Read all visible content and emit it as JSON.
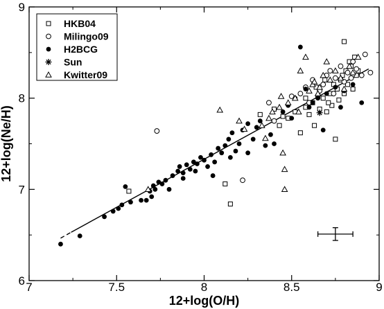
{
  "chart_data": {
    "type": "scatter",
    "xlabel": "12+log(O/H)",
    "ylabel": "12+log(Ne/H)",
    "xlim": [
      7,
      9
    ],
    "ylim": [
      6,
      9
    ],
    "x_ticks": [
      "7",
      "7.5",
      "8",
      "8.5",
      "9"
    ],
    "y_ticks": [
      "6",
      "7",
      "8",
      "9"
    ],
    "grid": false,
    "legend_position": "top-left",
    "series": [
      {
        "name": "HKB04",
        "marker": "square-open",
        "points": [
          [
            7.57,
            6.98
          ],
          [
            8.12,
            7.06
          ],
          [
            8.15,
            6.84
          ],
          [
            8.32,
            7.82
          ],
          [
            8.4,
            7.88
          ],
          [
            8.43,
            7.7
          ],
          [
            8.45,
            7.8
          ],
          [
            8.48,
            7.78
          ],
          [
            8.52,
            7.85
          ],
          [
            8.55,
            7.62
          ],
          [
            8.58,
            7.9
          ],
          [
            8.6,
            7.82
          ],
          [
            8.62,
            7.95
          ],
          [
            8.63,
            7.7
          ],
          [
            8.65,
            8.02
          ],
          [
            8.66,
            7.88
          ],
          [
            8.68,
            8.0
          ],
          [
            8.7,
            7.85
          ],
          [
            8.72,
            8.05
          ],
          [
            8.73,
            7.92
          ],
          [
            8.74,
            8.15
          ],
          [
            8.76,
            8.1
          ],
          [
            8.77,
            7.98
          ],
          [
            8.78,
            8.2
          ],
          [
            8.79,
            8.25
          ],
          [
            8.8,
            8.05
          ],
          [
            8.81,
            8.3
          ],
          [
            8.82,
            8.15
          ],
          [
            8.83,
            8.4
          ],
          [
            8.84,
            8.35
          ],
          [
            8.85,
            8.1
          ],
          [
            8.86,
            8.45
          ],
          [
            8.87,
            8.25
          ],
          [
            8.88,
            8.3
          ],
          [
            8.8,
            8.62
          ],
          [
            8.75,
            7.55
          ],
          [
            8.58,
            8.0
          ],
          [
            8.64,
            8.12
          ],
          [
            8.69,
            8.2
          ],
          [
            8.71,
            7.95
          ]
        ]
      },
      {
        "name": "Milingo09",
        "marker": "circle-open",
        "points": [
          [
            7.73,
            7.64
          ],
          [
            8.22,
            7.1
          ],
          [
            8.37,
            7.95
          ],
          [
            8.4,
            7.75
          ],
          [
            8.55,
            8.05
          ],
          [
            8.58,
            8.12
          ],
          [
            8.62,
            8.2
          ],
          [
            8.66,
            8.08
          ],
          [
            8.7,
            8.25
          ],
          [
            8.72,
            8.3
          ],
          [
            8.75,
            8.22
          ],
          [
            8.78,
            8.35
          ],
          [
            8.8,
            8.18
          ],
          [
            8.82,
            8.28
          ],
          [
            8.85,
            8.4
          ],
          [
            8.87,
            8.32
          ],
          [
            8.9,
            8.25
          ],
          [
            8.92,
            8.48
          ],
          [
            8.95,
            8.28
          ],
          [
            8.6,
            7.95
          ],
          [
            8.68,
            8.15
          ],
          [
            8.74,
            8.05
          ],
          [
            8.84,
            8.22
          ],
          [
            8.5,
            8.02
          ]
        ]
      },
      {
        "name": "H2BCG",
        "marker": "circle-filled",
        "points": [
          [
            7.18,
            6.4
          ],
          [
            7.29,
            6.49
          ],
          [
            7.43,
            6.7
          ],
          [
            7.48,
            6.76
          ],
          [
            7.51,
            6.79
          ],
          [
            7.53,
            6.83
          ],
          [
            7.55,
            7.03
          ],
          [
            7.58,
            6.86
          ],
          [
            7.64,
            6.88
          ],
          [
            7.67,
            6.88
          ],
          [
            7.69,
            6.98
          ],
          [
            7.7,
            6.92
          ],
          [
            7.71,
            7.04
          ],
          [
            7.72,
            7.0
          ],
          [
            7.74,
            7.08
          ],
          [
            7.76,
            7.06
          ],
          [
            7.78,
            7.1
          ],
          [
            7.8,
            7.0
          ],
          [
            7.82,
            7.15
          ],
          [
            7.85,
            7.2
          ],
          [
            7.86,
            7.25
          ],
          [
            7.88,
            7.18
          ],
          [
            7.9,
            7.27
          ],
          [
            7.92,
            7.22
          ],
          [
            7.94,
            7.3
          ],
          [
            7.96,
            7.28
          ],
          [
            7.98,
            7.35
          ],
          [
            8.0,
            7.32
          ],
          [
            8.02,
            7.25
          ],
          [
            8.04,
            7.38
          ],
          [
            8.06,
            7.3
          ],
          [
            8.08,
            7.45
          ],
          [
            8.1,
            7.4
          ],
          [
            8.12,
            7.48
          ],
          [
            8.14,
            7.55
          ],
          [
            8.16,
            7.62
          ],
          [
            8.18,
            7.42
          ],
          [
            8.2,
            7.5
          ],
          [
            8.22,
            7.65
          ],
          [
            8.25,
            7.72
          ],
          [
            8.28,
            7.55
          ],
          [
            8.3,
            7.68
          ],
          [
            8.32,
            7.75
          ],
          [
            8.35,
            7.48
          ],
          [
            8.38,
            7.6
          ],
          [
            8.4,
            7.5
          ],
          [
            8.45,
            7.85
          ],
          [
            8.48,
            7.92
          ],
          [
            8.5,
            7.78
          ],
          [
            8.52,
            8.0
          ],
          [
            8.55,
            8.56
          ],
          [
            8.58,
            8.1
          ],
          [
            8.6,
            7.9
          ],
          [
            8.62,
            7.95
          ],
          [
            8.65,
            8.0
          ],
          [
            8.68,
            7.65
          ],
          [
            8.7,
            8.05
          ],
          [
            8.75,
            8.12
          ],
          [
            8.78,
            7.9
          ],
          [
            8.8,
            8.08
          ],
          [
            8.85,
            8.15
          ],
          [
            8.9,
            7.95
          ],
          [
            7.88,
            7.12
          ],
          [
            7.95,
            7.2
          ],
          [
            8.05,
            7.15
          ],
          [
            8.15,
            7.35
          ],
          [
            8.25,
            7.4
          ]
        ]
      },
      {
        "name": "Sun",
        "marker": "asterisk",
        "points": [
          [
            8.66,
            7.84
          ]
        ]
      },
      {
        "name": "Kwitter09",
        "marker": "triangle-open",
        "points": [
          [
            7.68,
            7.0
          ],
          [
            8.09,
            7.87
          ],
          [
            8.2,
            7.75
          ],
          [
            8.23,
            7.66
          ],
          [
            8.33,
            7.7
          ],
          [
            8.35,
            7.56
          ],
          [
            8.37,
            7.78
          ],
          [
            8.39,
            7.85
          ],
          [
            8.43,
            7.9
          ],
          [
            8.45,
            7.4
          ],
          [
            8.46,
            7.22
          ],
          [
            8.46,
            7.0
          ],
          [
            8.48,
            7.95
          ],
          [
            8.52,
            8.0
          ],
          [
            8.55,
            8.3
          ],
          [
            8.58,
            8.45
          ],
          [
            8.6,
            8.08
          ],
          [
            8.62,
            8.15
          ],
          [
            8.63,
            8.18
          ],
          [
            8.65,
            8.05
          ],
          [
            8.68,
            8.25
          ],
          [
            8.7,
            8.4
          ],
          [
            8.72,
            8.2
          ],
          [
            8.75,
            8.3
          ],
          [
            8.78,
            8.22
          ],
          [
            8.8,
            8.1
          ],
          [
            8.83,
            8.35
          ],
          [
            8.85,
            8.28
          ],
          [
            8.88,
            8.45
          ],
          [
            8.54,
            7.85
          ],
          [
            8.44,
            8.02
          ],
          [
            8.66,
            8.12
          ]
        ]
      }
    ],
    "fit_line": {
      "style": "solid",
      "x": [
        7.24,
        8.94
      ],
      "y": [
        6.53,
        8.32
      ]
    },
    "fit_line_extension": {
      "style": "dashed",
      "x": [
        7.18,
        7.24
      ],
      "y": [
        6.465,
        6.53
      ]
    },
    "error_bar": {
      "x": 8.75,
      "y": 6.51,
      "x_error": 0.1,
      "y_error": 0.07
    }
  }
}
